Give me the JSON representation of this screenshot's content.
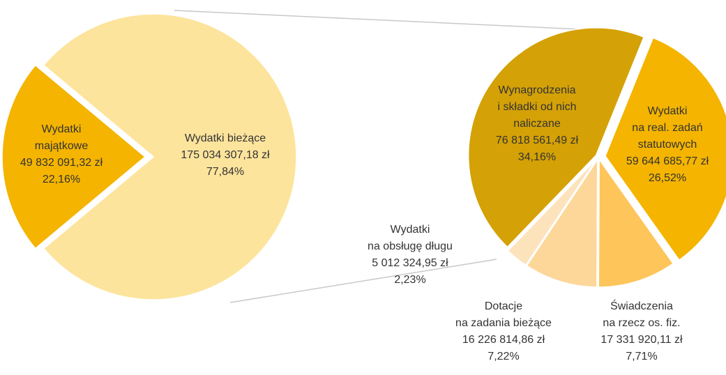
{
  "chart_data": [
    {
      "type": "pie",
      "labels": [
        "Wydatki\nmajątkowe",
        "Wydatki bieżące"
      ],
      "values": [
        22.16,
        77.84
      ],
      "value_labels": [
        "22,16%",
        "77,84%"
      ],
      "amounts": [
        "49 832 091,32 zł",
        "175 034 307,18 zł"
      ],
      "colors": [
        "#f4b400",
        "#fde49c"
      ]
    },
    {
      "type": "pie",
      "labels": [
        "Wynagrodzenia\ni składki od nich\nnaliczane",
        "Wydatki\nna real. zadań\nstatutowych",
        "Świadczenia\nna rzecz os. fiz.",
        "Dotacje\nna zadania bieżące",
        "Wydatki\nna obsługę długu"
      ],
      "values": [
        34.16,
        26.52,
        7.71,
        7.22,
        2.23
      ],
      "value_labels": [
        "34,16%",
        "26,52%",
        "7,71%",
        "7,22%",
        "2,23%"
      ],
      "amounts": [
        "76 818 561,49 zł",
        "59 644 685,77 zł",
        "17 331 920,11 zł",
        "16 226 814,86 zł",
        "5 012 324,95 zł"
      ],
      "colors": [
        "#d4a106",
        "#f4b400",
        "#fdc55a",
        "#fdd79a",
        "#fde3bb"
      ]
    }
  ]
}
